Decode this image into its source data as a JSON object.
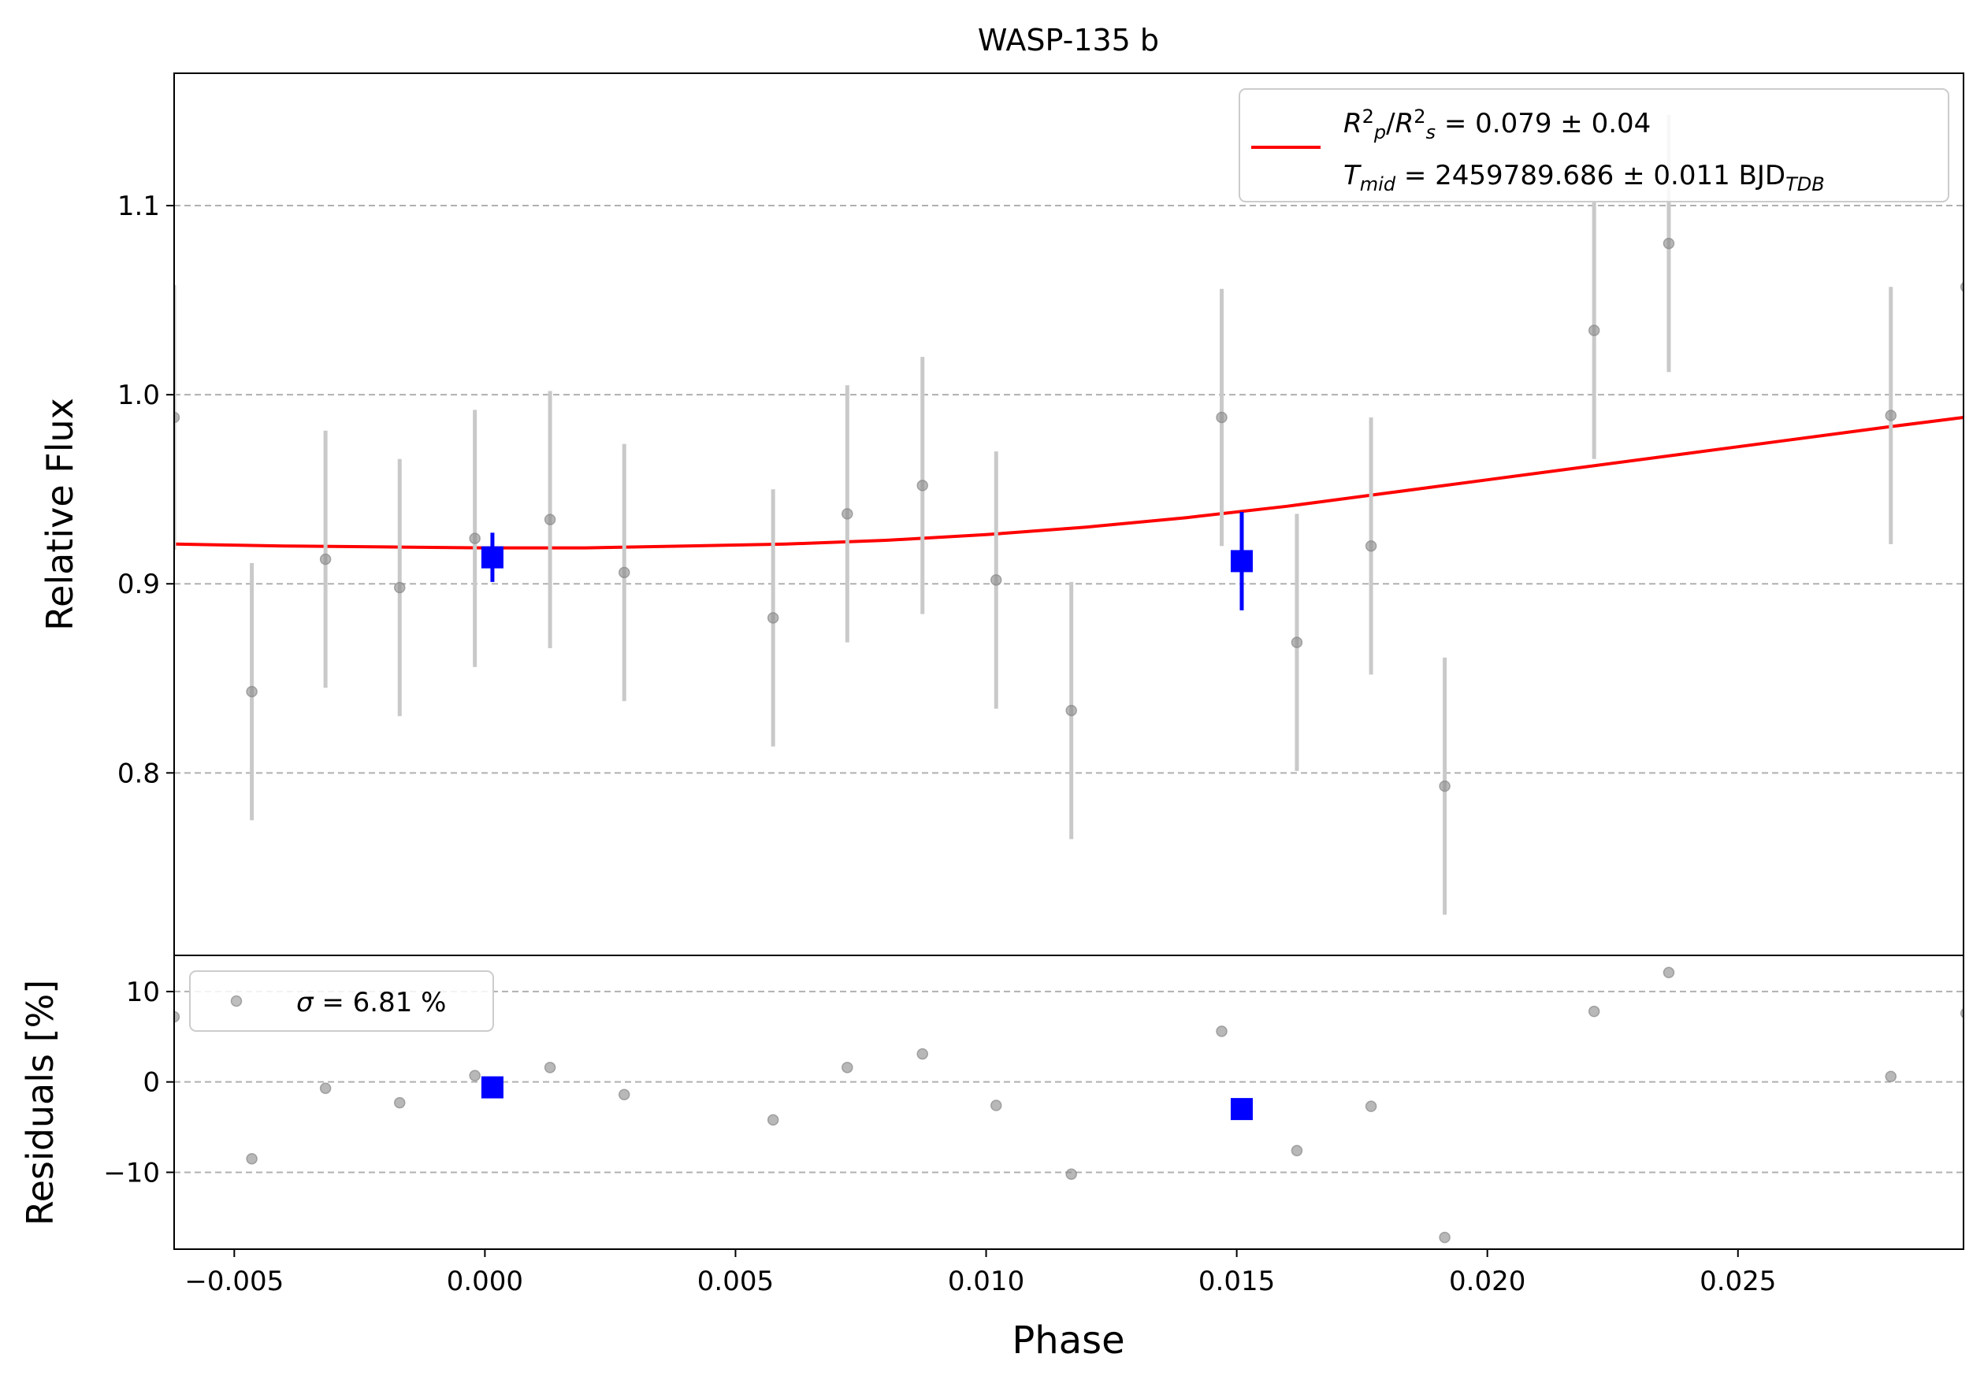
{
  "figure": {
    "title": "WASP-135 b",
    "xlabel": "Phase"
  },
  "chart_data": [
    {
      "type": "scatter",
      "panel": "flux",
      "title": "WASP-135 b",
      "ylabel": "Relative Flux",
      "xlabel": "",
      "xlim": [
        -0.0062,
        0.0295
      ],
      "ylim": [
        0.7035,
        1.17
      ],
      "yticks": [
        0.8,
        0.9,
        1.0,
        1.1
      ],
      "ytick_labels": [
        "0.8",
        "0.9",
        "1.0",
        "1.1"
      ],
      "grid": "horizontal dashed",
      "legend_position": "upper right",
      "colors": {
        "raw": "#888888",
        "errorbar": "#c9c9c9",
        "binned": "#0000ff",
        "model": "#ff0000"
      },
      "legend": {
        "line1": {
          "parts": [
            {
              "t": "R",
              "s": "i"
            },
            {
              "t": "2",
              "s": "sup"
            },
            {
              "t": "p",
              "s": "subi"
            },
            {
              "t": "/"
            },
            {
              "t": "R",
              "s": "i"
            },
            {
              "t": "2",
              "s": "sup"
            },
            {
              "t": "s",
              "s": "subi"
            },
            {
              "t": " = 0.079 ± 0.04"
            }
          ]
        },
        "line2": {
          "parts": [
            {
              "t": "T",
              "s": "i"
            },
            {
              "t": "mid",
              "s": "subi"
            },
            {
              "t": " = 2459789.686 ± 0.011 BJD"
            },
            {
              "t": "TDB",
              "s": "subi"
            }
          ]
        }
      },
      "series": [
        {
          "name": "raw",
          "x": [
            -0.0062,
            -0.00465,
            -0.00318,
            -0.0017,
            -0.0002,
            0.0013,
            0.00278,
            0.00575,
            0.00723,
            0.00873,
            0.0102,
            0.0117,
            0.0147,
            0.0162,
            0.01768,
            0.01915,
            0.02213,
            0.02362,
            0.02805,
            0.02955
          ],
          "y": [
            0.988,
            0.843,
            0.913,
            0.898,
            0.924,
            0.934,
            0.906,
            0.882,
            0.937,
            0.952,
            0.902,
            0.833,
            0.988,
            0.869,
            0.92,
            0.793,
            1.034,
            1.08,
            0.989,
            1.057
          ],
          "yerr": [
            0.07,
            0.068,
            0.068,
            0.068,
            0.068,
            0.068,
            0.068,
            0.068,
            0.068,
            0.068,
            0.068,
            0.068,
            0.068,
            0.068,
            0.068,
            0.068,
            0.068,
            0.068,
            0.068,
            0.068
          ]
        },
        {
          "name": "binned",
          "x": [
            0.00015,
            0.0151
          ],
          "y": [
            0.914,
            0.912
          ],
          "yerr": [
            0.013,
            0.026
          ]
        },
        {
          "name": "model",
          "x": [
            -0.0062,
            -0.004,
            -0.002,
            0.0,
            0.002,
            0.004,
            0.006,
            0.008,
            0.01,
            0.012,
            0.014,
            0.016,
            0.018,
            0.02,
            0.022,
            0.024,
            0.026,
            0.028,
            0.0295
          ],
          "y": [
            0.921,
            0.92,
            0.9195,
            0.919,
            0.919,
            0.92,
            0.921,
            0.923,
            0.926,
            0.93,
            0.935,
            0.941,
            0.948,
            0.955,
            0.962,
            0.969,
            0.976,
            0.983,
            0.988
          ]
        }
      ]
    },
    {
      "type": "scatter",
      "panel": "residuals",
      "ylabel": "Residuals [%]",
      "xlabel": "Phase",
      "xlim": [
        -0.0062,
        0.0295
      ],
      "ylim": [
        -18.5,
        14
      ],
      "yticks": [
        -10,
        0,
        10
      ],
      "ytick_labels": [
        "−10",
        "0",
        "10"
      ],
      "xticks": [
        -0.005,
        0.0,
        0.005,
        0.01,
        0.015,
        0.02,
        0.025
      ],
      "xtick_labels": [
        "−0.005",
        "0.000",
        "0.005",
        "0.010",
        "0.015",
        "0.020",
        "0.025"
      ],
      "grid": "horizontal dashed",
      "legend_position": "upper left",
      "legend": {
        "parts": [
          {
            "t": "σ",
            "s": "i"
          },
          {
            "t": " = 6.81 %"
          }
        ]
      },
      "series": [
        {
          "name": "raw",
          "x": [
            -0.0062,
            -0.00465,
            -0.00318,
            -0.0017,
            -0.0002,
            0.0013,
            0.00278,
            0.00575,
            0.00723,
            0.00873,
            0.0102,
            0.0117,
            0.0147,
            0.0162,
            0.01768,
            0.01915,
            0.02213,
            0.02362,
            0.02805,
            0.02955
          ],
          "y": [
            7.2,
            -8.5,
            -0.7,
            -2.3,
            0.7,
            1.6,
            -1.4,
            -4.2,
            1.6,
            3.1,
            -2.6,
            -10.2,
            5.6,
            -7.6,
            -2.7,
            -17.2,
            7.8,
            12.1,
            0.6,
            7.6
          ]
        },
        {
          "name": "binned",
          "x": [
            0.00015,
            0.0151
          ],
          "y": [
            -0.6,
            -3.0
          ]
        }
      ]
    }
  ]
}
